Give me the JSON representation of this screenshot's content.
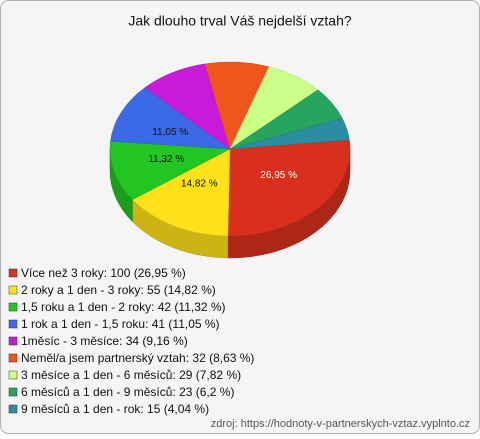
{
  "chart_data": {
    "type": "pie",
    "title": "Jak dlouho trval Váš nejdelší vztah?",
    "categories": [
      "Více než 3 roky: 100 (26,95 %)",
      "2 roky a 1 den - 3 roky: 55 (14,82 %)",
      "1,5 roku a 1 den - 2 roky: 42 (11,32 %)",
      "1 rok a 1 den - 1,5 roku: 41 (11,05 %)",
      "1měsíc - 3 měsíce: 34 (9,16 %)",
      "Neměl/a jsem partnerský vztah: 32 (8,63 %)",
      "3 měsíce a 1 den - 6 měsíců: 29 (7,82 %)",
      "6 měsíců a 1 den - 9 měsíců: 23 (6,2 %)",
      "9 měsíců a 1 den - rok: 15 (4,04 %)"
    ],
    "values": [
      26.95,
      14.82,
      11.32,
      11.05,
      9.16,
      8.63,
      7.82,
      6.2,
      4.04
    ],
    "value_labels": [
      "26,95 %",
      "14,82 %",
      "11,32 %",
      "11,05 %",
      null,
      null,
      null,
      null,
      null
    ],
    "colors": [
      "#d8301c",
      "#ffe11a",
      "#22c622",
      "#3c6ae6",
      "#c81ad8",
      "#f0561c",
      "#ccff88",
      "#27a45e",
      "#2c8ca2"
    ],
    "legend": "bottom-left",
    "source": "zdroj: https://hodnoty-v-partnerskych-vztaz.vyplnto.cz"
  }
}
